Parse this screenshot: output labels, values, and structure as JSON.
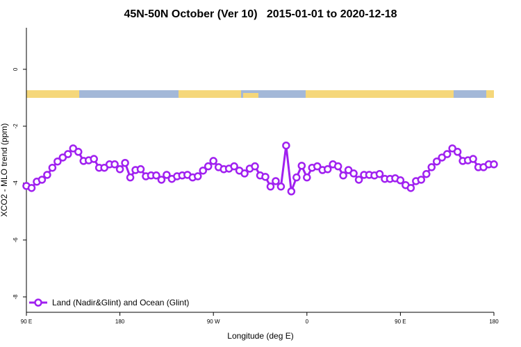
{
  "chart_data": {
    "type": "line",
    "title": "45N-50N October (Ver 10)   2015-01-01 to 2020-12-18",
    "xlabel": "Longitude (deg E)",
    "ylabel": "XCO2 - MLO trend (ppm)",
    "xlim": [
      90,
      540
    ],
    "xticks": [
      {
        "value": 90,
        "label": "90 E"
      },
      180,
      {
        "value": 270,
        "label": "90 W"
      },
      {
        "value": 360,
        "label": "0"
      },
      {
        "value": 450,
        "label": "90 E"
      },
      {
        "value": 540,
        "label": "180"
      }
    ],
    "ylim": [
      -8.54,
      1.46
    ],
    "yticks": [
      -8,
      -6,
      -4,
      -2,
      0
    ],
    "legend": "lower left",
    "x": [
      90,
      95,
      100,
      105,
      110,
      115,
      120,
      125,
      130,
      135,
      140,
      145,
      150,
      155,
      160,
      165,
      170,
      175,
      180,
      185,
      190,
      195,
      200,
      205,
      210,
      215,
      220,
      225,
      230,
      235,
      240,
      245,
      250,
      255,
      260,
      265,
      270,
      275,
      280,
      285,
      290,
      295,
      300,
      305,
      310,
      315,
      320,
      325,
      330,
      335,
      340,
      345,
      350,
      355,
      360,
      365,
      370,
      375,
      380,
      385,
      390,
      395,
      400,
      405,
      410,
      415,
      420,
      425,
      430,
      435,
      440,
      445,
      450,
      455,
      460,
      465,
      470,
      475,
      480,
      485,
      490,
      495,
      500,
      505,
      510,
      515,
      520,
      525,
      530,
      535,
      540
    ],
    "series": [
      {
        "name": "Land (Nadir&Glint) and Ocean (Glint)",
        "color": "#a020f0",
        "values": [
          -4.1,
          -4.17,
          -3.95,
          -3.88,
          -3.71,
          -3.46,
          -3.24,
          -3.1,
          -2.98,
          -2.78,
          -2.9,
          -3.22,
          -3.2,
          -3.15,
          -3.46,
          -3.46,
          -3.34,
          -3.34,
          -3.51,
          -3.29,
          -3.8,
          -3.54,
          -3.51,
          -3.76,
          -3.73,
          -3.73,
          -3.88,
          -3.71,
          -3.85,
          -3.76,
          -3.73,
          -3.71,
          -3.8,
          -3.76,
          -3.56,
          -3.41,
          -3.22,
          -3.44,
          -3.51,
          -3.49,
          -3.41,
          -3.56,
          -3.66,
          -3.49,
          -3.41,
          -3.73,
          -3.78,
          -4.12,
          -3.93,
          -4.12,
          -2.68,
          -4.29,
          -3.8,
          -3.39,
          -3.8,
          -3.46,
          -3.41,
          -3.54,
          -3.51,
          -3.34,
          -3.41,
          -3.73,
          -3.54,
          -3.66,
          -3.88,
          -3.71,
          -3.71,
          -3.73,
          -3.68,
          -3.85,
          -3.85,
          -3.83,
          -3.9,
          -4.07,
          -4.17,
          -3.93,
          -3.88,
          -3.68,
          -3.44,
          -3.24,
          -3.1,
          -2.98,
          -2.78,
          -2.9,
          -3.22,
          -3.2,
          -3.15,
          -3.44,
          -3.44,
          -3.34,
          -3.34
        ]
      }
    ]
  }
}
